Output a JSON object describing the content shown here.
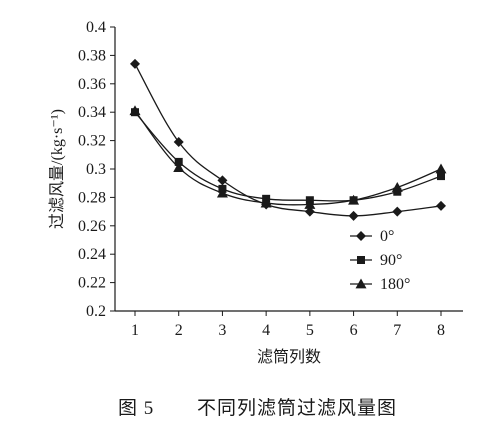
{
  "chart_data": {
    "type": "line",
    "title": "",
    "xlabel": "滤筒列数",
    "ylabel": "过滤风量/(kg·s⁻¹)",
    "categories": [
      1,
      2,
      3,
      4,
      5,
      6,
      7,
      8
    ],
    "x_tick_labels": [
      "1",
      "2",
      "3",
      "4",
      "5",
      "6",
      "7",
      "8"
    ],
    "ylim": [
      0.2,
      0.4
    ],
    "y_tick_labels": [
      "0.2",
      "0.22",
      "0.24",
      "0.26",
      "0.28",
      "0.3",
      "0.32",
      "0.34",
      "0.36",
      "0.38",
      "0.4"
    ],
    "grid": false,
    "legend_position": "bottom-right",
    "series": [
      {
        "name": "0°",
        "marker": "diamond",
        "values": [
          0.374,
          0.319,
          0.292,
          0.275,
          0.27,
          0.267,
          0.27,
          0.274
        ]
      },
      {
        "name": "90°",
        "marker": "square",
        "values": [
          0.34,
          0.305,
          0.286,
          0.279,
          0.278,
          0.278,
          0.284,
          0.295
        ]
      },
      {
        "name": "180°",
        "marker": "triangle",
        "values": [
          0.341,
          0.301,
          0.283,
          0.276,
          0.275,
          0.278,
          0.287,
          0.3
        ]
      }
    ],
    "colors": {
      "line": "#1a1a1a",
      "marker": "#1a1a1a"
    }
  },
  "caption": {
    "label": "图 5",
    "text": "不同列滤筒过滤风量图"
  }
}
